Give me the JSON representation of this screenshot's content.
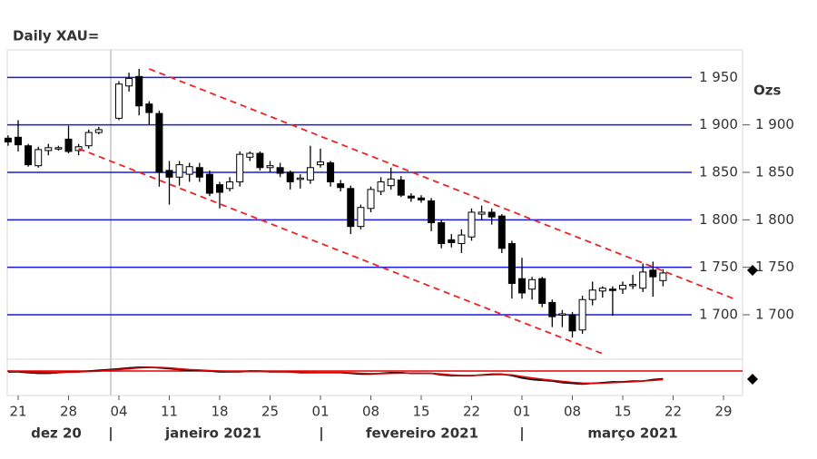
{
  "chart_data": {
    "type": "candlestick",
    "title": "Daily XAU=",
    "unit": "Ozs",
    "categories": [
      null,
      "21",
      null,
      null,
      null,
      null,
      "28",
      null,
      null,
      null,
      null,
      "04",
      null,
      null,
      null,
      null,
      "11",
      null,
      null,
      null,
      null,
      "18",
      null,
      null,
      null,
      null,
      "25",
      null,
      null,
      null,
      null,
      "01",
      null,
      null,
      null,
      null,
      "08",
      null,
      null,
      null,
      null,
      "15",
      null,
      null,
      null,
      null,
      "22",
      null,
      null,
      null,
      null,
      "01",
      null,
      null,
      null,
      null,
      "08",
      null,
      null,
      null,
      null,
      "15",
      null,
      null,
      null,
      null,
      "22",
      null,
      null,
      null,
      null,
      "29",
      null
    ],
    "open": [
      1886,
      1887,
      1878,
      1857,
      1873,
      1875,
      1885,
      1873,
      1878,
      1892,
      null,
      1907,
      1941,
      1951,
      1922,
      1912,
      1852,
      1845,
      1848,
      1855,
      1848,
      1837,
      1833,
      1840,
      1866,
      1870,
      1855,
      1855,
      1850,
      1843,
      1842,
      1858,
      1860,
      1838,
      1833,
      1793,
      1812,
      1830,
      1836,
      1842,
      1825,
      1823,
      1820,
      1797,
      1779,
      1775,
      1782,
      1806,
      1808,
      1804,
      1775,
      1738,
      1727,
      1738,
      1713,
      1700,
      1700,
      1684,
      1716,
      1725,
      1727,
      1727,
      1731,
      1728,
      1747,
      1736,
      null,
      null,
      null,
      null,
      null,
      null,
      null
    ],
    "high": [
      1889,
      1905,
      1880,
      1877,
      1880,
      1878,
      1899,
      1880,
      1895,
      1898,
      null,
      1946,
      1955,
      1959,
      1925,
      1915,
      1862,
      1862,
      1860,
      1860,
      1852,
      1840,
      1845,
      1872,
      1872,
      1872,
      1862,
      1860,
      1852,
      1848,
      1878,
      1875,
      1862,
      1842,
      1836,
      1816,
      1835,
      1845,
      1855,
      1846,
      1828,
      1826,
      1823,
      1800,
      1785,
      1790,
      1812,
      1815,
      1812,
      1806,
      1778,
      1760,
      1740,
      1740,
      1716,
      1705,
      1703,
      1720,
      1735,
      1730,
      1730,
      1735,
      1742,
      1754,
      1756,
      1748,
      null,
      null,
      null,
      null,
      null,
      null,
      null
    ],
    "low": [
      1878,
      1872,
      1856,
      1855,
      1868,
      1873,
      1870,
      1868,
      1875,
      1890,
      null,
      1905,
      1935,
      1910,
      1900,
      1835,
      1816,
      1836,
      1840,
      1840,
      1825,
      1812,
      1830,
      1835,
      1862,
      1852,
      1850,
      1845,
      1832,
      1833,
      1838,
      1855,
      1835,
      1830,
      1785,
      1790,
      1808,
      1826,
      1832,
      1824,
      1819,
      1818,
      1788,
      1770,
      1771,
      1765,
      1778,
      1800,
      1795,
      1765,
      1717,
      1717,
      1716,
      1708,
      1687,
      1687,
      1676,
      1680,
      1710,
      1718,
      1699,
      1722,
      1727,
      1724,
      1719,
      1730,
      null,
      null,
      null,
      null,
      null,
      null,
      null
    ],
    "close": [
      1882,
      1879,
      1858,
      1874,
      1876,
      1876,
      1872,
      1877,
      1892,
      1895,
      null,
      1943,
      1949,
      1920,
      1913,
      1850,
      1845,
      1858,
      1856,
      1845,
      1828,
      1829,
      1840,
      1869,
      1870,
      1855,
      1857,
      1849,
      1840,
      1844,
      1855,
      1861,
      1840,
      1834,
      1793,
      1813,
      1832,
      1840,
      1843,
      1826,
      1823,
      1821,
      1797,
      1775,
      1776,
      1784,
      1808,
      1808,
      1803,
      1770,
      1733,
      1723,
      1737,
      1712,
      1698,
      1701,
      1683,
      1716,
      1726,
      1728,
      1726,
      1731,
      1732,
      1745,
      1740,
      1744,
      null,
      null,
      null,
      null,
      null,
      null,
      null
    ],
    "ylim": [
      1657,
      1979
    ],
    "yticks": [
      {
        "value": 1700,
        "label": "1 700"
      },
      {
        "value": 1750,
        "label": "1 750"
      },
      {
        "value": 1800,
        "label": "1 800"
      },
      {
        "value": 1850,
        "label": "1 850"
      },
      {
        "value": 1900,
        "label": "1 900"
      }
    ],
    "hlines": [
      {
        "value": 1950,
        "label": "1 950"
      },
      {
        "value": 1900,
        "label": "1 900"
      },
      {
        "value": 1850,
        "label": "1 850"
      },
      {
        "value": 1800,
        "label": "1 800"
      },
      {
        "value": 1750,
        "label": "1 750"
      },
      {
        "value": 1700,
        "label": "1 700"
      }
    ],
    "hline_color": "#1a1adc",
    "trendlines": [
      {
        "color": "#ee2222",
        "points": [
          [
            14,
            1959
          ],
          [
            72,
            1717
          ]
        ]
      },
      {
        "color": "#ee2222",
        "points": [
          [
            7,
            1875
          ],
          [
            59,
            1659
          ]
        ]
      }
    ],
    "months": [
      "dez 20",
      "janeiro 2021",
      "fevereiro 2021",
      "março 2021"
    ],
    "indicator": {
      "ylim": [
        -1,
        1
      ],
      "level": 0.35,
      "level_color": "#e00000",
      "series": [
        {
          "color": "#000000",
          "values": [
            0.3,
            0.3,
            0.25,
            0.2,
            0.2,
            0.25,
            0.3,
            0.3,
            0.35,
            0.4,
            0.45,
            0.5,
            0.55,
            0.6,
            0.6,
            0.55,
            0.5,
            0.45,
            0.4,
            0.4,
            0.35,
            0.3,
            0.3,
            0.3,
            0.35,
            0.35,
            0.3,
            0.3,
            0.3,
            0.25,
            0.25,
            0.25,
            0.25,
            0.25,
            0.2,
            0.15,
            0.15,
            0.2,
            0.25,
            0.25,
            0.2,
            0.2,
            0.2,
            0.1,
            0.05,
            0.05,
            0.05,
            0.1,
            0.15,
            0.15,
            0.05,
            -0.1,
            -0.2,
            -0.25,
            -0.3,
            -0.4,
            -0.45,
            -0.5,
            -0.45,
            -0.4,
            -0.35,
            -0.35,
            -0.3,
            -0.3,
            -0.2,
            -0.15,
            null,
            null,
            null,
            null,
            null,
            null,
            null
          ]
        },
        {
          "color": "#e00000",
          "values": [
            0.35,
            0.33,
            0.3,
            0.28,
            0.27,
            0.27,
            0.28,
            0.3,
            0.32,
            0.35,
            0.4,
            0.45,
            0.5,
            0.55,
            0.58,
            0.58,
            0.55,
            0.5,
            0.45,
            0.42,
            0.38,
            0.35,
            0.33,
            0.32,
            0.32,
            0.33,
            0.32,
            0.31,
            0.3,
            0.28,
            0.27,
            0.26,
            0.26,
            0.26,
            0.24,
            0.2,
            0.18,
            0.18,
            0.2,
            0.22,
            0.22,
            0.21,
            0.2,
            0.16,
            0.1,
            0.07,
            0.06,
            0.08,
            0.11,
            0.13,
            0.1,
            0.0,
            -0.1,
            -0.18,
            -0.25,
            -0.32,
            -0.38,
            -0.43,
            -0.45,
            -0.43,
            -0.4,
            -0.37,
            -0.34,
            -0.3,
            -0.25,
            -0.2,
            null,
            null,
            null,
            null,
            null,
            null,
            null
          ]
        }
      ]
    }
  }
}
